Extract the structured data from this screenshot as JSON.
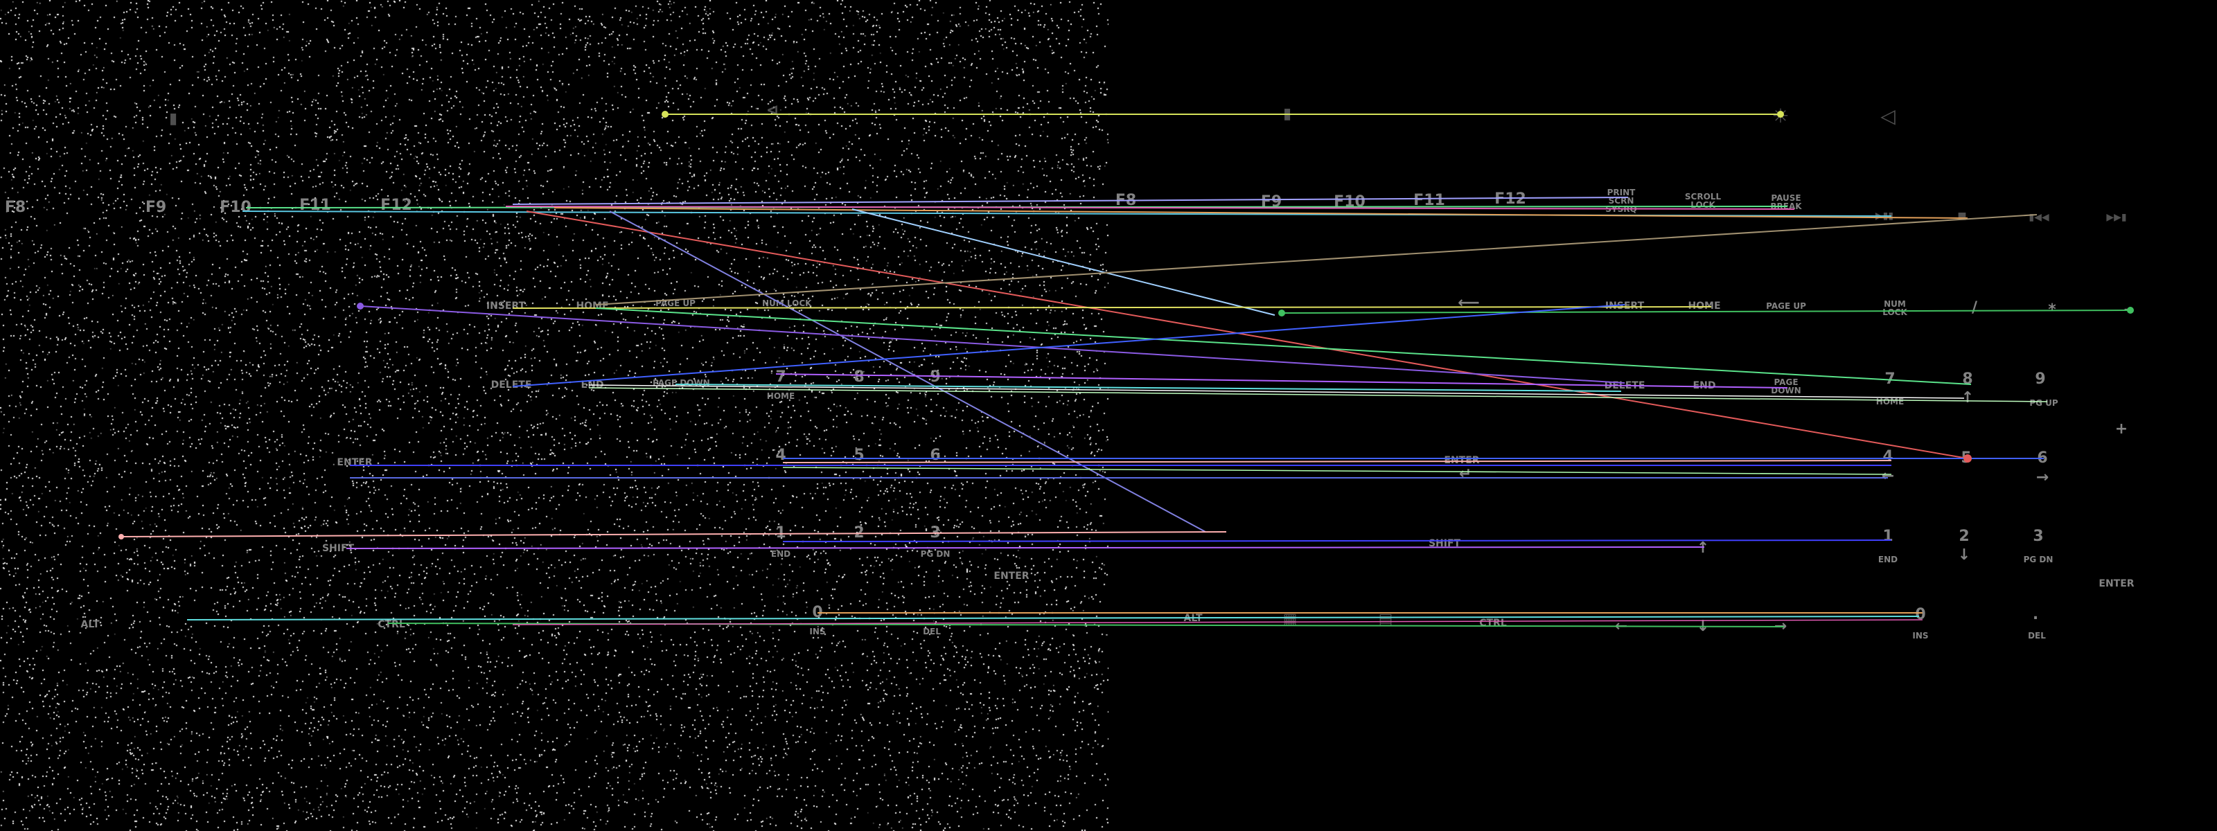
{
  "right_panel": {
    "brightness_icon": "sun-icon",
    "mute_icon": "speaker-icon",
    "media_icons": [
      "play-pause-icon",
      "stop-icon",
      "prev-track-icon",
      "next-track-icon"
    ],
    "fn_keys": [
      "F9",
      "F10",
      "F11",
      "F12"
    ],
    "print_screen": "PRINT SCRN SYSRQ",
    "scroll_lock": "SCROLL LOCK",
    "pause_break": "PAUSE BREAK",
    "insert": "INSERT",
    "home": "HOME",
    "page_up": "PAGE UP",
    "delete": "DELETE",
    "end": "END",
    "page_down": "PAGE DOWN",
    "num_lock": "NUM LOCK",
    "slash": "/",
    "asterisk": "*",
    "minus": "-",
    "plus": "+",
    "enter": "ENTER",
    "shift": "SHIFT",
    "alt": "ALT",
    "ctrl": "CTRL",
    "numpad": {
      "n7": "7",
      "n7_sub": "HOME",
      "n8": "8",
      "n9": "9",
      "n9_sub": "PG UP",
      "n4": "4",
      "n5": "5",
      "n6": "6",
      "n1": "1",
      "n1_sub": "END",
      "n2": "2",
      "n3": "3",
      "n3_sub": "PG DN",
      "n0": "0",
      "n0_sub": "INS",
      "dot": ".",
      "dot_sub": "DEL",
      "enter": "ENTER"
    }
  },
  "left_panel": {
    "fn_keys": [
      "F8",
      "F9",
      "F10",
      "F11",
      "F12"
    ],
    "insert": "INSERT",
    "home": "HOME",
    "page_up": "PAGE UP",
    "num_lock": "NUM LOCK",
    "delete": "DELETE",
    "end": "END",
    "page_down": "PAGE DOWN",
    "enter": "ENTER",
    "shift": "SHIFT",
    "alt": "ALT",
    "ctrl": "CTRL",
    "numpad_enter": "ENTER",
    "numpad": [
      "7",
      "8",
      "9",
      "4",
      "5",
      "6",
      "1",
      "2",
      "3",
      "0"
    ],
    "numpad_subs": [
      "HOME",
      "END",
      "PG DN",
      "INS",
      "DEL"
    ]
  },
  "colors": {
    "key_text": "#9a9a9a",
    "noise_dot": "#ffffff",
    "match_lines": [
      "#d6e35a",
      "#5ac8e3",
      "#e35a5a",
      "#8a5ae3",
      "#5ae38a",
      "#e3a05a",
      "#5a6ae3",
      "#e35ab4",
      "#a0a0ff",
      "#c0ffc0",
      "#ffb0b0",
      "#4060ff",
      "#b060ff",
      "#60e0e0",
      "#e0e060"
    ]
  }
}
